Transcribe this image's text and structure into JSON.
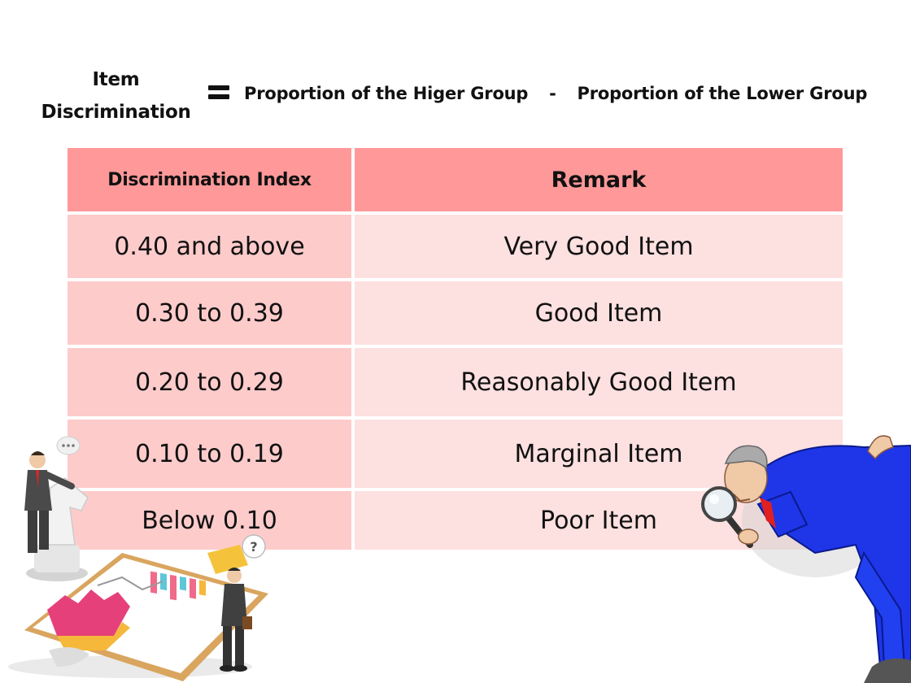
{
  "formula": {
    "lhs_line1": "Item",
    "lhs_line2": "Discrimination",
    "term_higher": "Proportion of the Higer Group",
    "operator": "-",
    "term_lower": "Proportion of the Lower Group"
  },
  "table": {
    "headers": [
      "Discrimination Index",
      "Remark"
    ],
    "rows": [
      {
        "index": "0.40 and above",
        "remark": "Very Good Item"
      },
      {
        "index": "0.30 to 0.39",
        "remark": "Good Item"
      },
      {
        "index": "0.20 to 0.29",
        "remark": "Reasonably Good Item"
      },
      {
        "index": "0.10 to 0.19",
        "remark": "Marginal Item"
      },
      {
        "index": "Below 0.10",
        "remark": "Poor Item"
      }
    ]
  },
  "illustrations": {
    "left": "businessman-chess-analytics-illustration",
    "right": "inspector-magnifying-glass-illustration",
    "left_question_mark": "?"
  },
  "colors": {
    "header_bg": "#ff9999",
    "index_cell_bg": "#fecbcb",
    "remark_cell_bg": "#fde0e0",
    "suit_blue": "#1f35e8"
  }
}
